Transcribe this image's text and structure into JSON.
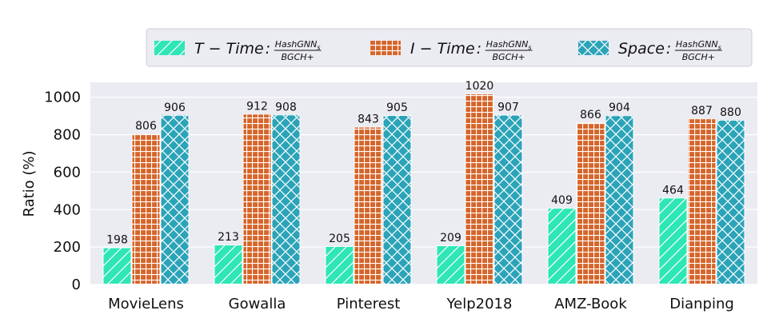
{
  "chart_data": {
    "type": "bar",
    "categories": [
      "MovieLens",
      "Gowalla",
      "Pinterest",
      "Yelp2018",
      "AMZ-Book",
      "Dianping"
    ],
    "series": [
      {
        "name": "T − Time",
        "ratio_numerator": "HashGNN",
        "ratio_numerator_sub": "s",
        "ratio_denominator": "BGCH+",
        "color": "#2ee6b6",
        "pattern": "diagonal",
        "values": [
          198,
          213,
          205,
          209,
          409,
          464
        ]
      },
      {
        "name": "I − Time",
        "ratio_numerator": "HashGNN",
        "ratio_numerator_sub": "s",
        "ratio_denominator": "BGCH+",
        "color": "#d6652a",
        "pattern": "grid",
        "values": [
          806,
          912,
          843,
          1020,
          866,
          887
        ]
      },
      {
        "name": "Space",
        "ratio_numerator": "HashGNN",
        "ratio_numerator_sub": "s",
        "ratio_denominator": "BGCH+",
        "color": "#2ba3b8",
        "pattern": "crosshatch",
        "values": [
          906,
          908,
          905,
          907,
          904,
          880
        ]
      }
    ],
    "title": "",
    "xlabel": "",
    "ylabel": "Ratio (%)",
    "ylim": [
      0,
      1080
    ],
    "yticks": [
      0,
      200,
      400,
      600,
      800,
      1000
    ],
    "grid": true,
    "legend_position": "top",
    "background": "#ebebf2"
  }
}
